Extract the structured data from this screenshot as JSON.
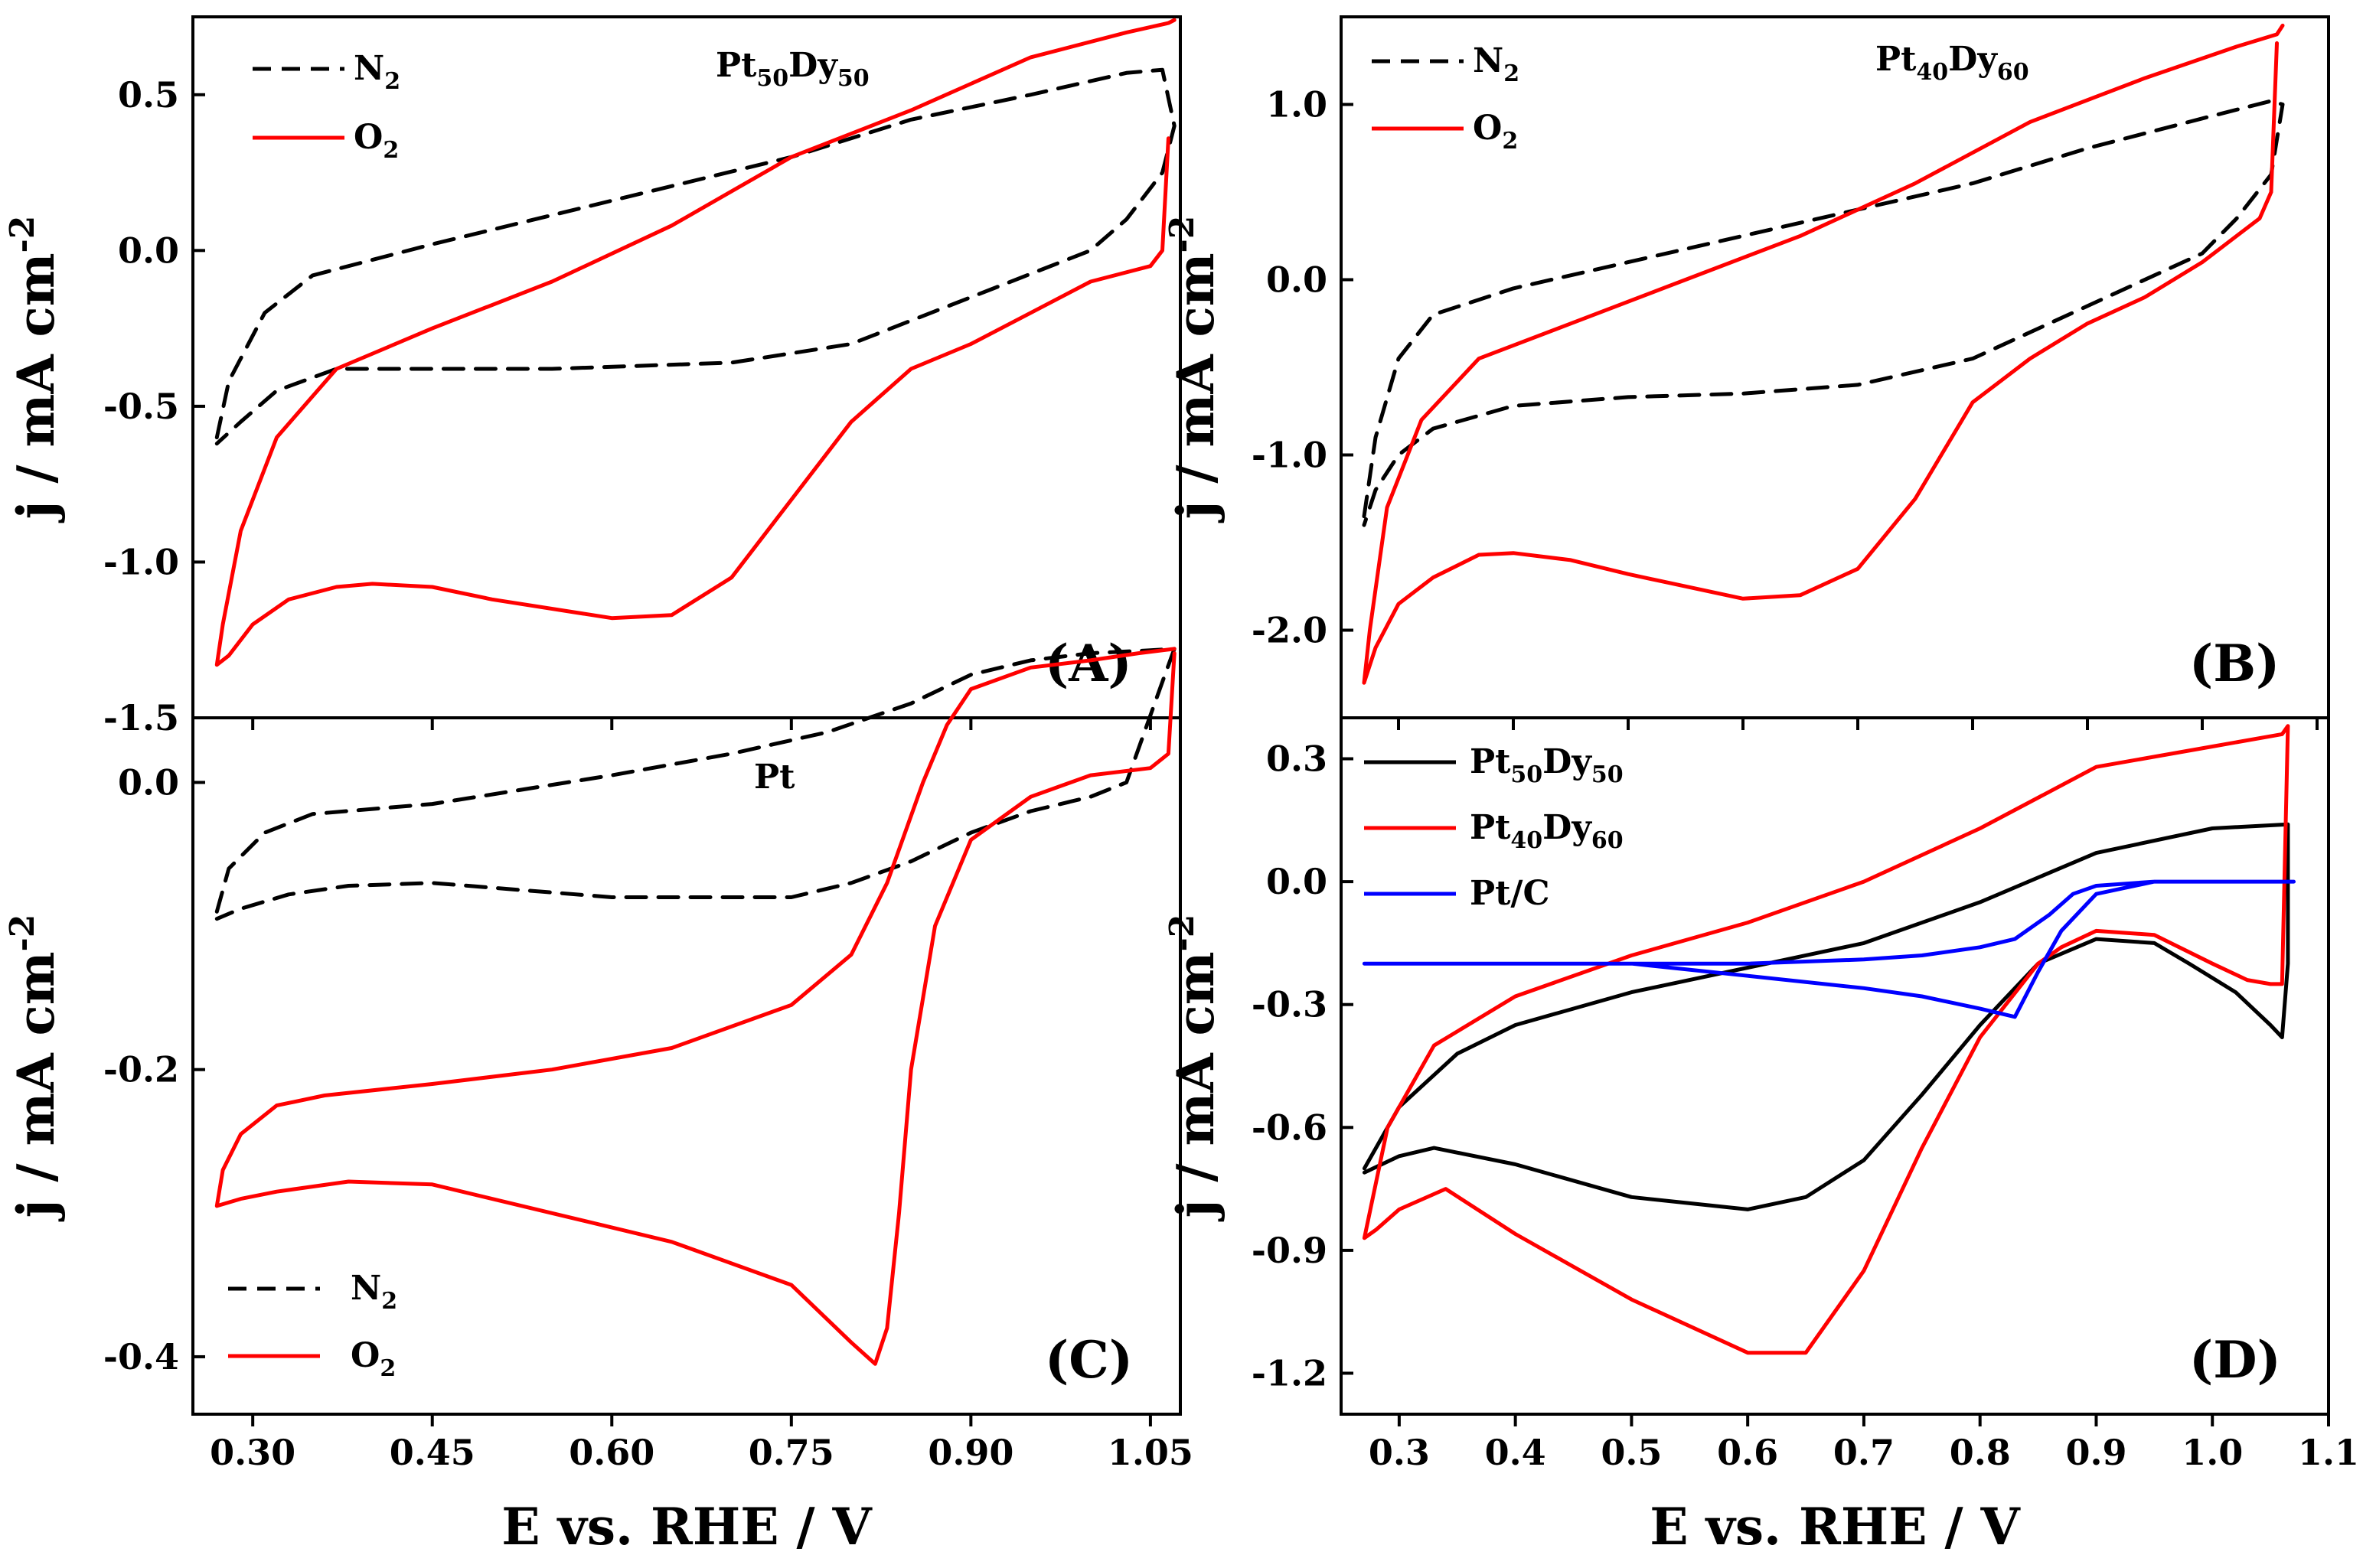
{
  "figure": {
    "xlabel_bottom_left": "E vs. RHE / V",
    "xlabel_bottom_right": "E vs. RHE / V"
  },
  "chart_data": [
    {
      "id": "A",
      "type": "line",
      "panel_label": "(A)",
      "title": "Pt50Dy50",
      "title_base": "Pt",
      "title_sub1": "50",
      "title_mid": "Dy",
      "title_sub2": "50",
      "ylabel": "j / mA cm-2",
      "ylabel_main": "j / mA cm",
      "ylabel_sup": "-2",
      "xlim": [
        0.25,
        1.075
      ],
      "ylim": [
        -1.5,
        0.75
      ],
      "yticks": [
        0.5,
        0.0,
        -0.5,
        -1.0,
        -1.5
      ],
      "ytick_labels": [
        "0.5",
        "0.0",
        "-0.5",
        "-1.0",
        "-1.5"
      ],
      "xticks": [
        0.3,
        0.45,
        0.6,
        0.75,
        0.9,
        1.05
      ],
      "xtick_labels": [],
      "legend": [
        {
          "label": "N2",
          "base": "N",
          "sub": "2",
          "color": "#000000",
          "dash": true
        },
        {
          "label": "O2",
          "base": "O",
          "sub": "2",
          "color": "#ff0000",
          "dash": false
        }
      ],
      "series": [
        {
          "name": "N2",
          "color": "#000000",
          "dash": true,
          "x": [
            0.27,
            0.28,
            0.31,
            0.35,
            0.45,
            0.6,
            0.75,
            0.85,
            0.95,
            1.03,
            1.06,
            1.07,
            1.06,
            1.03,
            1.0,
            0.9,
            0.8,
            0.7,
            0.55,
            0.45,
            0.37,
            0.32,
            0.29,
            0.27
          ],
          "y": [
            -0.6,
            -0.42,
            -0.2,
            -0.08,
            0.02,
            0.16,
            0.3,
            0.42,
            0.5,
            0.57,
            0.58,
            0.4,
            0.25,
            0.1,
            0.0,
            -0.15,
            -0.3,
            -0.36,
            -0.38,
            -0.38,
            -0.38,
            -0.45,
            -0.55,
            -0.62
          ]
        },
        {
          "name": "O2",
          "color": "#ff0000",
          "dash": false,
          "x": [
            1.065,
            1.06,
            1.05,
            1.0,
            0.95,
            0.9,
            0.85,
            0.8,
            0.75,
            0.7,
            0.65,
            0.6,
            0.5,
            0.45,
            0.4,
            0.37,
            0.33,
            0.3,
            0.28,
            0.27,
            0.275,
            0.29,
            0.32,
            0.37,
            0.45,
            0.55,
            0.65,
            0.75,
            0.85,
            0.95,
            1.03,
            1.065,
            1.07
          ],
          "y": [
            0.36,
            0.0,
            -0.05,
            -0.1,
            -0.2,
            -0.3,
            -0.38,
            -0.55,
            -0.8,
            -1.05,
            -1.17,
            -1.18,
            -1.12,
            -1.08,
            -1.07,
            -1.08,
            -1.12,
            -1.2,
            -1.3,
            -1.33,
            -1.2,
            -0.9,
            -0.6,
            -0.38,
            -0.25,
            -0.1,
            0.08,
            0.3,
            0.45,
            0.62,
            0.7,
            0.73,
            0.74
          ]
        }
      ]
    },
    {
      "id": "B",
      "type": "line",
      "panel_label": "(B)",
      "title": "Pt40Dy60",
      "title_base": "Pt",
      "title_sub1": "40",
      "title_mid": "Dy",
      "title_sub2": "60",
      "ylabel": "j / mA cm-2",
      "ylabel_main": "j / mA cm",
      "ylabel_sup": "-2",
      "xlim": [
        0.25,
        1.11
      ],
      "ylim": [
        -2.5,
        1.5
      ],
      "yticks": [
        1.0,
        0.0,
        -1.0,
        -2.0
      ],
      "ytick_labels": [
        "1.0",
        "0.0",
        "-1.0",
        "-2.0"
      ],
      "xticks": [
        0.3,
        0.4,
        0.5,
        0.6,
        0.7,
        0.8,
        0.9,
        1.0,
        1.1
      ],
      "xtick_labels": [],
      "legend": [
        {
          "label": "N2",
          "base": "N",
          "sub": "2",
          "color": "#000000",
          "dash": true
        },
        {
          "label": "O2",
          "base": "O",
          "sub": "2",
          "color": "#ff0000",
          "dash": false
        }
      ],
      "series": [
        {
          "name": "N2",
          "color": "#000000",
          "dash": true,
          "x": [
            0.27,
            0.28,
            0.3,
            0.33,
            0.4,
            0.5,
            0.6,
            0.7,
            0.8,
            0.9,
            1.0,
            1.06,
            1.07,
            1.06,
            1.03,
            1.0,
            0.9,
            0.8,
            0.7,
            0.6,
            0.5,
            0.4,
            0.33,
            0.3,
            0.28,
            0.27
          ],
          "y": [
            -1.35,
            -0.9,
            -0.45,
            -0.2,
            -0.05,
            0.1,
            0.25,
            0.4,
            0.55,
            0.75,
            0.92,
            1.02,
            1.0,
            0.6,
            0.35,
            0.15,
            -0.15,
            -0.45,
            -0.6,
            -0.65,
            -0.67,
            -0.72,
            -0.85,
            -1.0,
            -1.2,
            -1.4
          ]
        },
        {
          "name": "O2",
          "color": "#ff0000",
          "dash": false,
          "x": [
            1.065,
            1.06,
            1.05,
            1.0,
            0.95,
            0.9,
            0.85,
            0.8,
            0.75,
            0.7,
            0.65,
            0.6,
            0.5,
            0.45,
            0.4,
            0.37,
            0.33,
            0.3,
            0.28,
            0.27,
            0.275,
            0.29,
            0.32,
            0.37,
            0.45,
            0.55,
            0.65,
            0.75,
            0.85,
            0.95,
            1.03,
            1.065,
            1.07
          ],
          "y": [
            1.35,
            0.5,
            0.35,
            0.1,
            -0.1,
            -0.25,
            -0.45,
            -0.7,
            -1.25,
            -1.65,
            -1.8,
            -1.82,
            -1.68,
            -1.6,
            -1.56,
            -1.57,
            -1.7,
            -1.85,
            -2.1,
            -2.3,
            -2.0,
            -1.3,
            -0.8,
            -0.45,
            -0.25,
            0.0,
            0.25,
            0.55,
            0.9,
            1.15,
            1.33,
            1.4,
            1.45
          ]
        }
      ]
    },
    {
      "id": "C",
      "type": "line",
      "panel_label": "(C)",
      "title": "Pt",
      "ylabel": "j / mA cm-2",
      "ylabel_main": "j / mA cm",
      "ylabel_sup": "-2",
      "xlim": [
        0.25,
        1.075
      ],
      "ylim": [
        -0.44,
        0.045
      ],
      "yticks": [
        0.0,
        -0.2,
        -0.4
      ],
      "ytick_labels": [
        "0.0",
        "-0.2",
        "-0.4"
      ],
      "xticks": [
        0.3,
        0.45,
        0.6,
        0.75,
        0.9,
        1.05
      ],
      "xtick_labels": [
        "0.30",
        "0.45",
        "0.60",
        "0.75",
        "0.90",
        "1.05"
      ],
      "legend": [
        {
          "label": "N2",
          "base": "N",
          "sub": "2",
          "color": "#000000",
          "dash": true
        },
        {
          "label": "O2",
          "base": "O",
          "sub": "2",
          "color": "#ff0000",
          "dash": false
        }
      ],
      "series": [
        {
          "name": "N2",
          "color": "#000000",
          "dash": true,
          "x": [
            0.27,
            0.28,
            0.31,
            0.35,
            0.45,
            0.6,
            0.7,
            0.78,
            0.85,
            0.9,
            0.95,
            1.0,
            1.05,
            1.07,
            1.06,
            1.03,
            1.0,
            0.95,
            0.9,
            0.85,
            0.8,
            0.75,
            0.6,
            0.45,
            0.38,
            0.33,
            0.29,
            0.27
          ],
          "y": [
            -0.09,
            -0.06,
            -0.035,
            -0.022,
            -0.015,
            0.005,
            0.02,
            0.035,
            0.055,
            0.075,
            0.085,
            0.09,
            0.092,
            0.093,
            0.07,
            0.0,
            -0.01,
            -0.02,
            -0.035,
            -0.055,
            -0.07,
            -0.08,
            -0.08,
            -0.07,
            -0.072,
            -0.078,
            -0.088,
            -0.095
          ]
        },
        {
          "name": "O2",
          "color": "#ff0000",
          "dash": false,
          "x": [
            1.07,
            1.065,
            1.05,
            1.0,
            0.95,
            0.9,
            0.87,
            0.85,
            0.84,
            0.83,
            0.82,
            0.8,
            0.75,
            0.65,
            0.55,
            0.45,
            0.38,
            0.32,
            0.29,
            0.27,
            0.275,
            0.29,
            0.32,
            0.36,
            0.45,
            0.55,
            0.65,
            0.75,
            0.8,
            0.83,
            0.86,
            0.88,
            0.9,
            0.95,
            1.0,
            1.04,
            1.07
          ],
          "y": [
            0.09,
            0.02,
            0.01,
            0.005,
            -0.01,
            -0.04,
            -0.1,
            -0.2,
            -0.3,
            -0.38,
            -0.405,
            -0.39,
            -0.35,
            -0.32,
            -0.3,
            -0.28,
            -0.278,
            -0.285,
            -0.29,
            -0.295,
            -0.27,
            -0.245,
            -0.225,
            -0.218,
            -0.21,
            -0.2,
            -0.185,
            -0.155,
            -0.12,
            -0.07,
            0.0,
            0.04,
            0.065,
            0.08,
            0.085,
            0.09,
            0.093
          ]
        }
      ]
    },
    {
      "id": "D",
      "type": "line",
      "panel_label": "(D)",
      "ylabel": "j / mA cm-2",
      "ylabel_main": "j / mA cm",
      "ylabel_sup": "-2",
      "xlim": [
        0.25,
        1.1
      ],
      "ylim": [
        -1.3,
        0.4
      ],
      "yticks": [
        0.3,
        0.0,
        -0.3,
        -0.6,
        -0.9,
        -1.2
      ],
      "ytick_labels": [
        "0.3",
        "0.0",
        "-0.3",
        "-0.6",
        "-0.9",
        "-1.2"
      ],
      "xticks": [
        0.3,
        0.4,
        0.5,
        0.6,
        0.7,
        0.8,
        0.9,
        1.0,
        1.1
      ],
      "xtick_labels": [
        "0.3",
        "0.4",
        "0.5",
        "0.6",
        "0.7",
        "0.8",
        "0.9",
        "1.0",
        "1.1"
      ],
      "legend": [
        {
          "label": "Pt50Dy50",
          "base": "Pt",
          "sub": "50",
          "mid": "Dy",
          "sub2": "50",
          "color": "#000000",
          "dash": false
        },
        {
          "label": "Pt40Dy60",
          "base": "Pt",
          "sub": "40",
          "mid": "Dy",
          "sub2": "60",
          "color": "#ff0000",
          "dash": false
        },
        {
          "label": "Pt/C",
          "base": "Pt/C",
          "color": "#0000ff",
          "dash": false
        }
      ],
      "series": [
        {
          "name": "Pt50Dy50",
          "color": "#000000",
          "dash": false,
          "x": [
            0.27,
            0.3,
            0.35,
            0.4,
            0.5,
            0.6,
            0.7,
            0.8,
            0.9,
            1.0,
            1.065,
            1.065,
            1.06,
            1.05,
            1.02,
            0.98,
            0.95,
            0.9,
            0.85,
            0.8,
            0.75,
            0.7,
            0.65,
            0.6,
            0.5,
            0.4,
            0.33,
            0.3,
            0.27
          ],
          "y": [
            -0.7,
            -0.55,
            -0.42,
            -0.35,
            -0.27,
            -0.21,
            -0.15,
            -0.05,
            0.07,
            0.13,
            0.14,
            -0.2,
            -0.38,
            -0.35,
            -0.27,
            -0.2,
            -0.15,
            -0.14,
            -0.2,
            -0.35,
            -0.52,
            -0.68,
            -0.77,
            -0.8,
            -0.77,
            -0.69,
            -0.65,
            -0.67,
            -0.71
          ]
        },
        {
          "name": "Pt40Dy60",
          "color": "#ff0000",
          "dash": false,
          "x": [
            0.27,
            0.29,
            0.33,
            0.4,
            0.5,
            0.6,
            0.7,
            0.8,
            0.9,
            1.0,
            1.06,
            1.065,
            1.06,
            1.05,
            1.03,
            1.0,
            0.95,
            0.9,
            0.87,
            0.85,
            0.8,
            0.75,
            0.7,
            0.65,
            0.6,
            0.5,
            0.4,
            0.34,
            0.3,
            0.28,
            0.27
          ],
          "y": [
            -0.87,
            -0.6,
            -0.4,
            -0.28,
            -0.18,
            -0.1,
            0.0,
            0.13,
            0.28,
            0.33,
            0.36,
            0.38,
            -0.25,
            -0.25,
            -0.24,
            -0.2,
            -0.13,
            -0.12,
            -0.16,
            -0.2,
            -0.38,
            -0.65,
            -0.95,
            -1.15,
            -1.15,
            -1.02,
            -0.86,
            -0.75,
            -0.8,
            -0.85,
            -0.87
          ]
        },
        {
          "name": "Pt/C",
          "color": "#0000ff",
          "dash": false,
          "x": [
            0.27,
            0.4,
            0.5,
            0.6,
            0.7,
            0.75,
            0.8,
            0.83,
            0.86,
            0.88,
            0.9,
            0.95,
            1.0,
            1.07,
            1.0,
            0.95,
            0.9,
            0.87,
            0.85,
            0.83,
            0.8,
            0.75,
            0.7,
            0.6,
            0.5,
            0.4,
            0.3,
            0.27
          ],
          "y": [
            -0.2,
            -0.2,
            -0.2,
            -0.2,
            -0.19,
            -0.18,
            -0.16,
            -0.14,
            -0.08,
            -0.03,
            -0.01,
            0.0,
            0.0,
            0.0,
            0.0,
            0.0,
            -0.03,
            -0.12,
            -0.22,
            -0.33,
            -0.31,
            -0.28,
            -0.26,
            -0.23,
            -0.2,
            -0.2,
            -0.2,
            -0.2
          ]
        }
      ]
    }
  ]
}
